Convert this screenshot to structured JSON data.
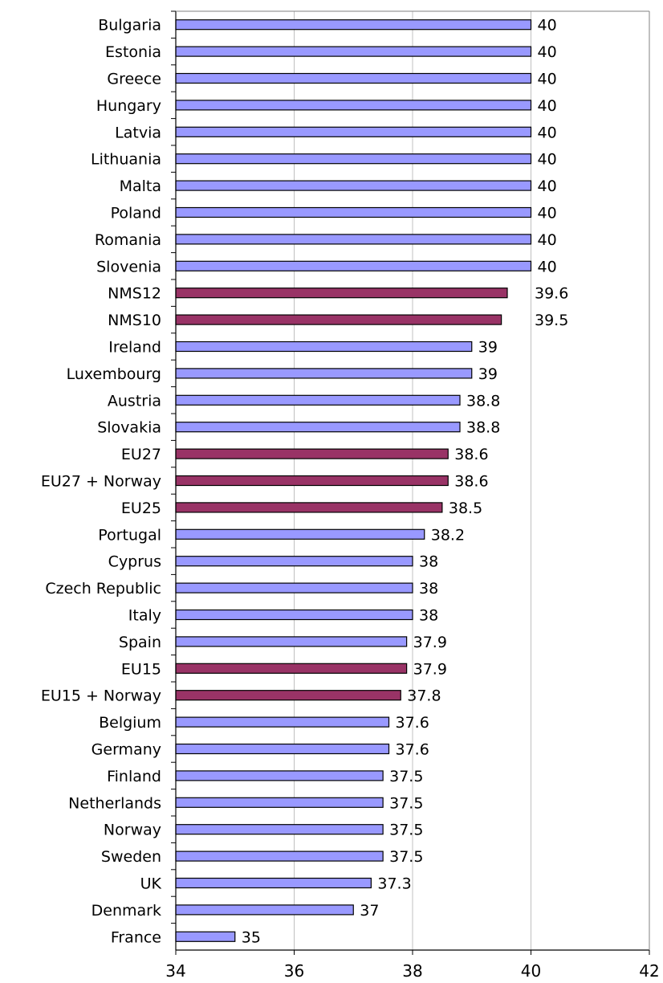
{
  "chart_data": {
    "type": "bar",
    "orientation": "horizontal",
    "title": "",
    "xlabel": "",
    "ylabel": "",
    "xlim": [
      34,
      42
    ],
    "x_ticks": [
      "34",
      "36",
      "38",
      "40",
      "42"
    ],
    "grid": "vertical lines at major ticks",
    "legend": "none",
    "colors": {
      "country": "#9999ff",
      "aggregate": "#993366",
      "outline": "#000000",
      "grid": "#c0c0c0",
      "frame": "#808080"
    },
    "categories": [
      "Bulgaria",
      "Estonia",
      "Greece",
      "Hungary",
      "Latvia",
      "Lithuania",
      "Malta",
      "Poland",
      "Romania",
      "Slovenia",
      "NMS12",
      "NMS10",
      "Ireland",
      "Luxembourg",
      "Austria",
      "Slovakia",
      "EU27",
      "EU27 + Norway",
      "EU25",
      "Portugal",
      "Cyprus",
      "Czech Republic",
      "Italy",
      "Spain",
      "EU15",
      "EU15 + Norway",
      "Belgium",
      "Germany",
      "Finland",
      "Netherlands",
      "Norway",
      "Sweden",
      "UK",
      "Denmark",
      "France"
    ],
    "values": [
      40,
      40,
      40,
      40,
      40,
      40,
      40,
      40,
      40,
      40,
      39.6,
      39.5,
      39,
      39,
      38.8,
      38.8,
      38.6,
      38.6,
      38.5,
      38.2,
      38,
      38,
      38,
      37.9,
      37.9,
      37.8,
      37.6,
      37.6,
      37.5,
      37.5,
      37.5,
      37.5,
      37.3,
      37,
      35
    ],
    "value_labels": [
      "40",
      "40",
      "40",
      "40",
      "40",
      "40",
      "40",
      "40",
      "40",
      "40",
      "39.6",
      "39.5",
      "39",
      "39",
      "38.8",
      "38.8",
      "38.6",
      "38.6",
      "38.5",
      "38.2",
      "38",
      "38",
      "38",
      "37.9",
      "37.9",
      "37.8",
      "37.6",
      "37.6",
      "37.5",
      "37.5",
      "37.5",
      "37.5",
      "37.3",
      "37",
      "35"
    ],
    "aggregate_flags": [
      false,
      false,
      false,
      false,
      false,
      false,
      false,
      false,
      false,
      false,
      true,
      true,
      false,
      false,
      false,
      false,
      true,
      true,
      true,
      false,
      false,
      false,
      false,
      false,
      true,
      true,
      false,
      false,
      false,
      false,
      false,
      false,
      false,
      false,
      false
    ]
  }
}
